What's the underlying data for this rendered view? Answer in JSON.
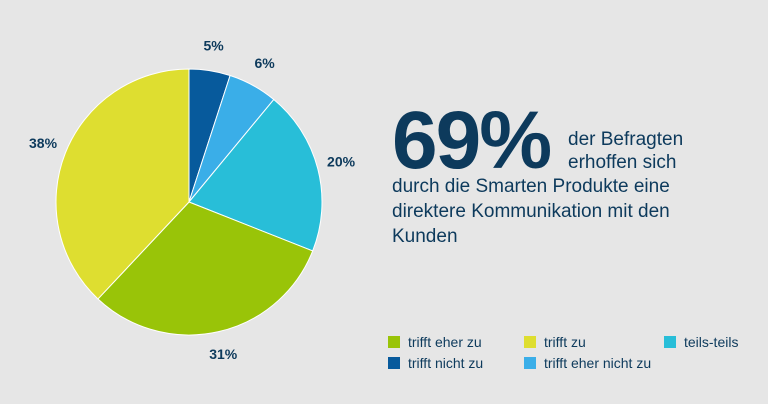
{
  "chart_data": {
    "type": "pie",
    "slices": [
      {
        "label": "trifft nicht zu",
        "value": 5,
        "value_label": "5%",
        "color": "#075a9c"
      },
      {
        "label": "trifft eher nicht zu",
        "value": 6,
        "value_label": "6%",
        "color": "#3aaee8"
      },
      {
        "label": "teils-teils",
        "value": 20,
        "value_label": "20%",
        "color": "#28bed8"
      },
      {
        "label": "trifft eher zu",
        "value": 31,
        "value_label": "31%",
        "color": "#99c408"
      },
      {
        "label": "trifft zu",
        "value": 38,
        "value_label": "38%",
        "color": "#dede30"
      }
    ],
    "legend_order": [
      "trifft eher zu",
      "trifft zu",
      "teils-teils",
      "trifft nicht zu",
      "trifft eher nicht zu"
    ],
    "legend_placement": "bottom-right"
  },
  "headline": {
    "number": "69%",
    "text_right_line1": "der Befragten",
    "text_right_line2": "erhoffen sich",
    "text_bottom": "durch die Smarten Produkte eine direktere Kommunikation mit den Kunden"
  },
  "legend": {
    "items": [
      {
        "label": "trifft eher zu",
        "color": "#99c408"
      },
      {
        "label": "trifft zu",
        "color": "#dede30"
      },
      {
        "label": "teils-teils",
        "color": "#28bed8"
      },
      {
        "label": "trifft nicht zu",
        "color": "#075a9c"
      },
      {
        "label": "trifft eher nicht zu",
        "color": "#3aaee8"
      }
    ]
  },
  "colors": {
    "background": "#e6e6e6",
    "text": "#0d3a5c"
  }
}
